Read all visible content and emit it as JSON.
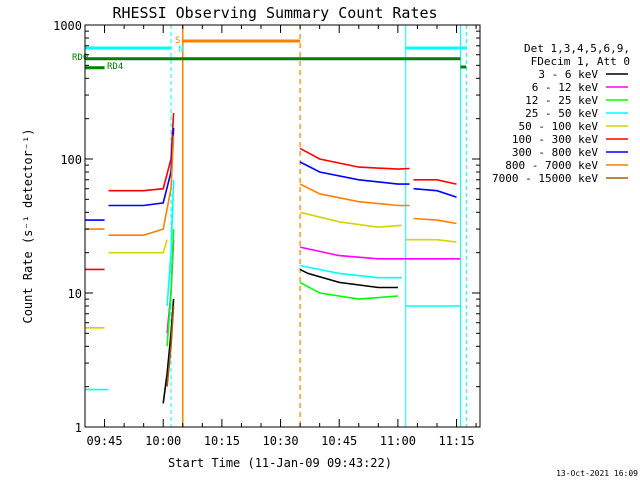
{
  "chart_data": {
    "type": "line",
    "title": "RHESSI Observing Summary Count Rates",
    "xlabel": "Start Time (11-Jan-09 09:43:22)",
    "ylabel": "Count Rate (s⁻¹ detector⁻¹)",
    "yscale": "log",
    "ylim": [
      1,
      1000
    ],
    "xlim": [
      "09:40",
      "11:21"
    ],
    "yticks": [
      {
        "value": 1,
        "label": "1"
      },
      {
        "value": 10,
        "label": "10"
      },
      {
        "value": 100,
        "label": "100"
      },
      {
        "value": 1000,
        "label": "1000"
      }
    ],
    "xticks": [
      "09:45",
      "10:00",
      "10:15",
      "10:30",
      "10:45",
      "11:00",
      "11:15"
    ],
    "legend": {
      "position": "right",
      "header": [
        "Det 1,3,4,5,6,9,",
        "FDecim 1, Att 0"
      ]
    },
    "series": [
      {
        "name": "3 - 6 keV",
        "color": "#000000",
        "segments": [
          {
            "x": [
              "10:00",
              "10:01",
              "10:02",
              "10:02:40"
            ],
            "y": [
              1.5,
              2.5,
              5,
              9
            ]
          },
          {
            "x": [
              "10:35",
              "10:37",
              "10:45",
              "10:55",
              "11:00"
            ],
            "y": [
              15,
              14,
              12,
              11,
              11
            ]
          }
        ]
      },
      {
        "name": "6 - 12 keV",
        "color": "#ff00ff",
        "segments": [
          {
            "x": [
              "10:01",
              "10:02",
              "10:02:40"
            ],
            "y": [
              5,
              10,
              25
            ]
          },
          {
            "x": [
              "10:35",
              "10:45",
              "10:55",
              "11:02",
              "11:06",
              "11:15",
              "11:16"
            ],
            "y": [
              22,
              19,
              18,
              18,
              18,
              18,
              18
            ]
          }
        ]
      },
      {
        "name": "12 - 25 keV",
        "color": "#00ff00",
        "segments": [
          {
            "x": [
              "10:01",
              "10:02",
              "10:02:40"
            ],
            "y": [
              4,
              10,
              30
            ]
          },
          {
            "x": [
              "10:35",
              "10:40",
              "10:50",
              "11:00"
            ],
            "y": [
              12,
              10,
              9,
              9.5
            ]
          }
        ]
      },
      {
        "name": "25 - 50 keV",
        "color": "#00ffff",
        "segments": [
          {
            "x": [
              "09:40",
              "09:46"
            ],
            "y": [
              1.9,
              1.9
            ]
          },
          {
            "x": [
              "10:01",
              "10:02",
              "10:02:40"
            ],
            "y": [
              8,
              20,
              70
            ]
          },
          {
            "x": [
              "10:35",
              "10:45",
              "10:55",
              "11:01"
            ],
            "y": [
              16,
              14,
              13,
              13
            ]
          },
          {
            "x": [
              "11:02",
              "11:10",
              "11:16"
            ],
            "y": [
              8,
              8,
              8
            ]
          }
        ]
      },
      {
        "name": "50 - 100 keV",
        "color": "#d4d400",
        "segments": [
          {
            "x": [
              "09:40",
              "09:45"
            ],
            "y": [
              5.5,
              5.5
            ]
          },
          {
            "x": [
              "09:46",
              "09:55",
              "10:00",
              "10:01"
            ],
            "y": [
              20,
              20,
              20,
              25
            ]
          },
          {
            "x": [
              "10:35",
              "10:45",
              "10:55",
              "11:01"
            ],
            "y": [
              40,
              34,
              31,
              32
            ]
          },
          {
            "x": [
              "11:02",
              "11:10",
              "11:15"
            ],
            "y": [
              25,
              25,
              24
            ]
          }
        ]
      },
      {
        "name": "100 - 300 keV",
        "color": "#ff0000",
        "segments": [
          {
            "x": [
              "09:40",
              "09:45"
            ],
            "y": [
              15,
              15
            ]
          },
          {
            "x": [
              "09:46",
              "09:55",
              "10:00",
              "10:02",
              "10:02:40"
            ],
            "y": [
              58,
              58,
              60,
              100,
              220
            ]
          },
          {
            "x": [
              "10:35",
              "10:40",
              "10:50",
              "11:00",
              "11:03"
            ],
            "y": [
              120,
              100,
              87,
              84,
              85
            ]
          },
          {
            "x": [
              "11:04",
              "11:10",
              "11:15"
            ],
            "y": [
              70,
              70,
              65
            ]
          }
        ]
      },
      {
        "name": "300 - 800 keV",
        "color": "#0000ff",
        "segments": [
          {
            "x": [
              "09:40",
              "09:45"
            ],
            "y": [
              35,
              35
            ]
          },
          {
            "x": [
              "09:46",
              "09:55",
              "10:00",
              "10:02",
              "10:02:40"
            ],
            "y": [
              45,
              45,
              47,
              80,
              170
            ]
          },
          {
            "x": [
              "10:35",
              "10:40",
              "10:50",
              "11:00",
              "11:03"
            ],
            "y": [
              95,
              80,
              70,
              65,
              65
            ]
          },
          {
            "x": [
              "11:04",
              "11:10",
              "11:15"
            ],
            "y": [
              60,
              58,
              52
            ]
          }
        ]
      },
      {
        "name": "800 - 7000 keV",
        "color": "#ff8000",
        "segments": [
          {
            "x": [
              "09:40",
              "09:45"
            ],
            "y": [
              30,
              30
            ]
          },
          {
            "x": [
              "09:46",
              "09:55",
              "10:00",
              "10:02",
              "10:02:40"
            ],
            "y": [
              27,
              27,
              30,
              60,
              150
            ]
          },
          {
            "x": [
              "10:35",
              "10:40",
              "10:50",
              "11:00",
              "11:03"
            ],
            "y": [
              65,
              55,
              48,
              45,
              45
            ]
          },
          {
            "x": [
              "11:04",
              "11:10",
              "11:15"
            ],
            "y": [
              36,
              35,
              33
            ]
          }
        ]
      },
      {
        "name": "7000 - 15000 keV",
        "color": "#a06000",
        "segments": [
          {
            "x": [
              "10:01",
              "10:02",
              "10:02:40"
            ],
            "y": [
              2,
              4,
              8
            ]
          }
        ]
      }
    ],
    "annotations": {
      "flags": [
        {
          "label": "RD0",
          "color": "#008000",
          "y": 560
        },
        {
          "label": "RD4",
          "color": "#008000",
          "y": 480
        }
      ],
      "letters": [
        {
          "label": "S",
          "color": "#ff8000"
        },
        {
          "label": "N",
          "color": "#00ffff"
        }
      ],
      "night_color": "#00ffff",
      "saa_color": "#ff8000"
    },
    "grid": false
  },
  "footer": {
    "timestamp": "13-Oct-2021 16:09"
  }
}
